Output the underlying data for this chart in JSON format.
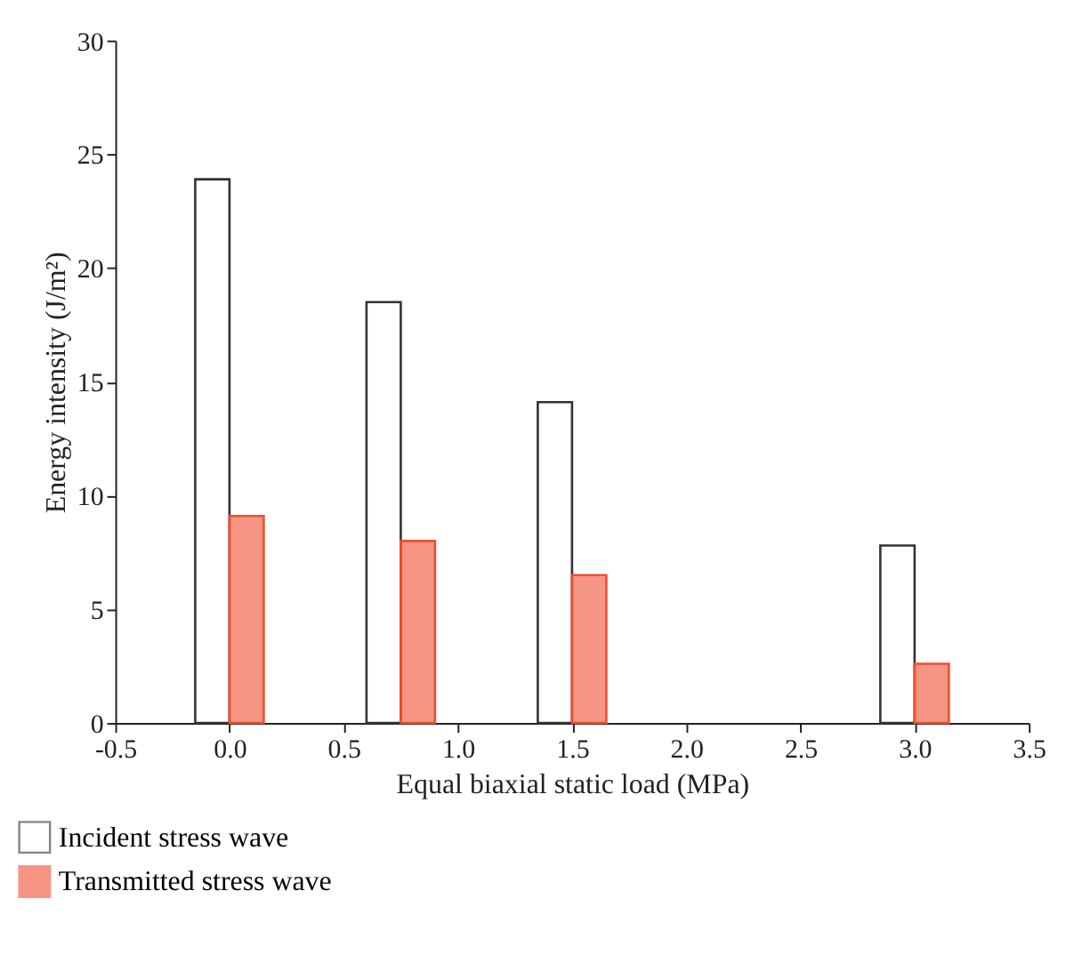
{
  "chart_data": {
    "type": "bar",
    "xlabel": "Equal biaxial static load (MPa)",
    "ylabel": "Energy intensity (J/m²)",
    "x": [
      0.0,
      0.75,
      1.5,
      3.0
    ],
    "series": [
      {
        "name": "Incident stress wave",
        "color": "#ffffff",
        "values": [
          23.9,
          18.5,
          14.1,
          7.8
        ]
      },
      {
        "name": "Transmitted stress wave",
        "color": "#f04e30",
        "values": [
          9.1,
          8.0,
          6.5,
          2.6
        ]
      }
    ],
    "xlim": [
      -0.5,
      3.5
    ],
    "xticks": [
      -0.5,
      {
        "value": 0,
        "label": "0.0"
      },
      0.5,
      {
        "value": 1,
        "label": "1.0"
      },
      1.5,
      {
        "value": 2,
        "label": "2.0"
      },
      2.5,
      {
        "value": 3,
        "label": "3.0"
      },
      3.5
    ],
    "ylim": [
      0,
      30
    ],
    "yticks": [
      0,
      5,
      10,
      15,
      20,
      25,
      30
    ],
    "grid": false,
    "legend": "bottom left"
  }
}
